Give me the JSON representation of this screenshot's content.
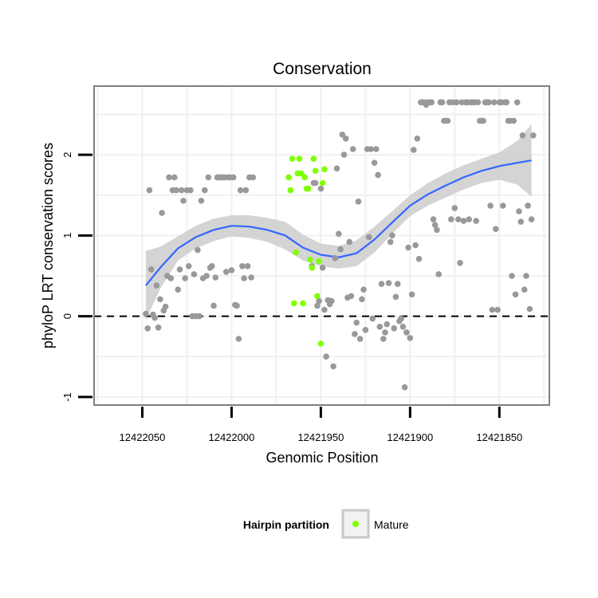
{
  "chart_data": {
    "type": "scatter",
    "title": "Conservation",
    "xlabel": "Genomic Position",
    "ylabel": "phyloP LRT conservation scores",
    "x_reversed": true,
    "xlim": [
      12422077,
      12421822
    ],
    "ylim": [
      -1.1,
      2.85
    ],
    "x_ticks": [
      12422050,
      12422000,
      12421950,
      12421900,
      12421850
    ],
    "x_tick_labels": [
      "12422050",
      "12422000",
      "12421950",
      "12421900",
      "12421850"
    ],
    "y_ticks": [
      -1,
      0,
      1,
      2
    ],
    "y_tick_labels": [
      "-1",
      "0",
      "1",
      "2"
    ],
    "grid": true,
    "reference_line": {
      "y": 0,
      "style": "dashed"
    },
    "legend": {
      "title": "Hairpin partition",
      "placement": "bottom",
      "entries": [
        "Mature"
      ]
    },
    "colors": {
      "other": "#999999",
      "mature": "#80ff00",
      "smooth": "#3366ff",
      "ribbon": "#cccccc",
      "panel_border": "#7f7f7f",
      "grid": "#f0f0f0"
    },
    "series": [
      {
        "name": "",
        "color": "#999999",
        "points": [
          [
            12422048,
            0.03
          ],
          [
            12422047,
            -0.15
          ],
          [
            12422046,
            1.56
          ],
          [
            12422045,
            0.58
          ],
          [
            12422044,
            0.02
          ],
          [
            12422043,
            -0.02
          ],
          [
            12422042,
            0.38
          ],
          [
            12422041,
            -0.14
          ],
          [
            12422040,
            0.21
          ],
          [
            12422039,
            1.28
          ],
          [
            12422038,
            0.07
          ],
          [
            12422037,
            0.12
          ],
          [
            12422036,
            0.5
          ],
          [
            12422035,
            1.72
          ],
          [
            12422034,
            0.47
          ],
          [
            12422033,
            1.56
          ],
          [
            12422032,
            1.72
          ],
          [
            12422031,
            1.56
          ],
          [
            12422030,
            0.33
          ],
          [
            12422029,
            0.58
          ],
          [
            12422028,
            1.56
          ],
          [
            12422027,
            1.43
          ],
          [
            12422026,
            0.47
          ],
          [
            12422025,
            1.56
          ],
          [
            12422024,
            0.62
          ],
          [
            12422023,
            1.56
          ],
          [
            12422022,
            0.0
          ],
          [
            12422021,
            0.52
          ],
          [
            12422020,
            0.0
          ],
          [
            12422019,
            0.82
          ],
          [
            12422018,
            0.0
          ],
          [
            12422017,
            1.43
          ],
          [
            12422016,
            0.47
          ],
          [
            12422015,
            1.56
          ],
          [
            12422014,
            0.5
          ],
          [
            12422013,
            1.72
          ],
          [
            12422012,
            0.6
          ],
          [
            12422011,
            0.62
          ],
          [
            12422010,
            0.13
          ],
          [
            12422009,
            0.48
          ],
          [
            12422008,
            1.72
          ],
          [
            12422007,
            1.72
          ],
          [
            12422006,
            1.72
          ],
          [
            12422005,
            1.72
          ],
          [
            12422004,
            1.72
          ],
          [
            12422003,
            0.55
          ],
          [
            12422002,
            1.72
          ],
          [
            12422001,
            1.72
          ],
          [
            12422000,
            0.57
          ],
          [
            12421999,
            1.72
          ],
          [
            12421998,
            0.14
          ],
          [
            12421997,
            0.13
          ],
          [
            12421996,
            -0.28
          ],
          [
            12421995,
            1.56
          ],
          [
            12421994,
            0.62
          ],
          [
            12421993,
            0.47
          ],
          [
            12421992,
            1.56
          ],
          [
            12421991,
            0.62
          ],
          [
            12421990,
            1.72
          ],
          [
            12421989,
            0.48
          ],
          [
            12421988,
            1.72
          ],
          [
            12421955,
            0.62
          ],
          [
            12421954,
            1.65
          ],
          [
            12421953,
            1.65
          ],
          [
            12421952,
            0.13
          ],
          [
            12421951,
            0.19
          ],
          [
            12421950,
            1.58
          ],
          [
            12421949,
            0.6
          ],
          [
            12421948,
            0.08
          ],
          [
            12421947,
            -0.5
          ],
          [
            12421946,
            0.2
          ],
          [
            12421945,
            0.15
          ],
          [
            12421944,
            0.19
          ],
          [
            12421943,
            -0.62
          ],
          [
            12421942,
            0.72
          ],
          [
            12421941,
            1.83
          ],
          [
            12421940,
            1.02
          ],
          [
            12421939,
            0.83
          ],
          [
            12421938,
            2.25
          ],
          [
            12421937,
            2.0
          ],
          [
            12421936,
            2.2
          ],
          [
            12421935,
            0.23
          ],
          [
            12421934,
            0.92
          ],
          [
            12421933,
            0.25
          ],
          [
            12421932,
            2.07
          ],
          [
            12421931,
            -0.22
          ],
          [
            12421930,
            -0.08
          ],
          [
            12421929,
            1.42
          ],
          [
            12421928,
            -0.28
          ],
          [
            12421927,
            0.21
          ],
          [
            12421926,
            0.33
          ],
          [
            12421925,
            -0.17
          ],
          [
            12421924,
            2.07
          ],
          [
            12421923,
            0.98
          ],
          [
            12421922,
            2.07
          ],
          [
            12421921,
            -0.03
          ],
          [
            12421920,
            1.9
          ],
          [
            12421919,
            2.07
          ],
          [
            12421918,
            1.75
          ],
          [
            12421917,
            -0.13
          ],
          [
            12421916,
            0.4
          ],
          [
            12421915,
            -0.28
          ],
          [
            12421914,
            -0.2
          ],
          [
            12421913,
            -0.1
          ],
          [
            12421912,
            0.41
          ],
          [
            12421911,
            0.92
          ],
          [
            12421910,
            1.0
          ],
          [
            12421909,
            -0.15
          ],
          [
            12421908,
            0.24
          ],
          [
            12421907,
            0.4
          ],
          [
            12421906,
            -0.06
          ],
          [
            12421905,
            -0.03
          ],
          [
            12421904,
            -0.13
          ],
          [
            12421903,
            -0.88
          ],
          [
            12421902,
            -0.2
          ],
          [
            12421901,
            0.85
          ],
          [
            12421900,
            -0.27
          ],
          [
            12421899,
            0.27
          ],
          [
            12421898,
            2.06
          ],
          [
            12421897,
            0.88
          ],
          [
            12421896,
            2.2
          ],
          [
            12421895,
            0.71
          ],
          [
            12421894,
            2.65
          ],
          [
            12421893,
            2.65
          ],
          [
            12421892,
            2.65
          ],
          [
            12421891,
            2.62
          ],
          [
            12421890,
            2.65
          ],
          [
            12421889,
            2.65
          ],
          [
            12421888,
            2.65
          ],
          [
            12421887,
            1.2
          ],
          [
            12421886,
            1.13
          ],
          [
            12421885,
            1.07
          ],
          [
            12421884,
            0.52
          ],
          [
            12421883,
            2.65
          ],
          [
            12421882,
            2.65
          ],
          [
            12421881,
            2.42
          ],
          [
            12421880,
            2.42
          ],
          [
            12421879,
            2.42
          ],
          [
            12421878,
            2.65
          ],
          [
            12421877,
            1.2
          ],
          [
            12421876,
            2.65
          ],
          [
            12421875,
            1.34
          ],
          [
            12421874,
            2.65
          ],
          [
            12421873,
            1.2
          ],
          [
            12421872,
            0.66
          ],
          [
            12421871,
            2.65
          ],
          [
            12421870,
            1.18
          ],
          [
            12421869,
            2.65
          ],
          [
            12421868,
            2.65
          ],
          [
            12421867,
            1.2
          ],
          [
            12421866,
            2.65
          ],
          [
            12421865,
            2.65
          ],
          [
            12421864,
            2.65
          ],
          [
            12421863,
            1.18
          ],
          [
            12421862,
            2.65
          ],
          [
            12421861,
            2.42
          ],
          [
            12421860,
            2.42
          ],
          [
            12421859,
            2.42
          ],
          [
            12421858,
            2.65
          ],
          [
            12421857,
            2.65
          ],
          [
            12421856,
            2.65
          ],
          [
            12421855,
            1.37
          ],
          [
            12421854,
            0.08
          ],
          [
            12421853,
            2.65
          ],
          [
            12421852,
            1.08
          ],
          [
            12421851,
            0.08
          ],
          [
            12421850,
            2.65
          ],
          [
            12421849,
            2.65
          ],
          [
            12421848,
            1.37
          ],
          [
            12421847,
            2.65
          ],
          [
            12421846,
            2.65
          ],
          [
            12421845,
            2.42
          ],
          [
            12421844,
            2.42
          ],
          [
            12421843,
            0.5
          ],
          [
            12421842,
            2.42
          ],
          [
            12421841,
            0.27
          ],
          [
            12421840,
            2.65
          ],
          [
            12421839,
            1.3
          ],
          [
            12421838,
            1.17
          ],
          [
            12421837,
            2.24
          ],
          [
            12421836,
            0.33
          ],
          [
            12421835,
            0.5
          ],
          [
            12421834,
            1.37
          ],
          [
            12421833,
            0.09
          ],
          [
            12421832,
            1.2
          ],
          [
            12421831,
            2.24
          ]
        ]
      },
      {
        "name": "Mature",
        "color": "#80ff00",
        "points": [
          [
            12421968,
            1.72
          ],
          [
            12421967,
            1.56
          ],
          [
            12421966,
            1.95
          ],
          [
            12421965,
            0.16
          ],
          [
            12421964,
            0.79
          ],
          [
            12421963,
            1.77
          ],
          [
            12421962,
            1.95
          ],
          [
            12421961,
            1.77
          ],
          [
            12421960,
            0.16
          ],
          [
            12421959,
            1.72
          ],
          [
            12421958,
            1.58
          ],
          [
            12421957,
            1.58
          ],
          [
            12421956,
            0.7
          ],
          [
            12421955,
            0.6
          ],
          [
            12421954,
            1.95
          ],
          [
            12421953,
            1.8
          ],
          [
            12421952,
            0.25
          ],
          [
            12421951,
            0.68
          ],
          [
            12421950,
            -0.34
          ],
          [
            12421949,
            1.65
          ],
          [
            12421948,
            1.82
          ]
        ]
      }
    ],
    "smooth": {
      "x": [
        12422048,
        12422040,
        12422030,
        12422020,
        12422010,
        12422000,
        12421990,
        12421980,
        12421970,
        12421960,
        12421950,
        12421940,
        12421930,
        12421920,
        12421910,
        12421900,
        12421890,
        12421880,
        12421870,
        12421860,
        12421850,
        12421840,
        12421832
      ],
      "y": [
        0.38,
        0.6,
        0.84,
        0.98,
        1.07,
        1.12,
        1.11,
        1.07,
        1.0,
        0.85,
        0.76,
        0.73,
        0.78,
        0.95,
        1.16,
        1.37,
        1.51,
        1.62,
        1.72,
        1.8,
        1.86,
        1.9,
        1.93
      ],
      "se": [
        0.43,
        0.26,
        0.15,
        0.14,
        0.14,
        0.13,
        0.14,
        0.15,
        0.17,
        0.16,
        0.14,
        0.14,
        0.16,
        0.16,
        0.14,
        0.13,
        0.14,
        0.15,
        0.15,
        0.15,
        0.17,
        0.27,
        0.45
      ]
    }
  }
}
